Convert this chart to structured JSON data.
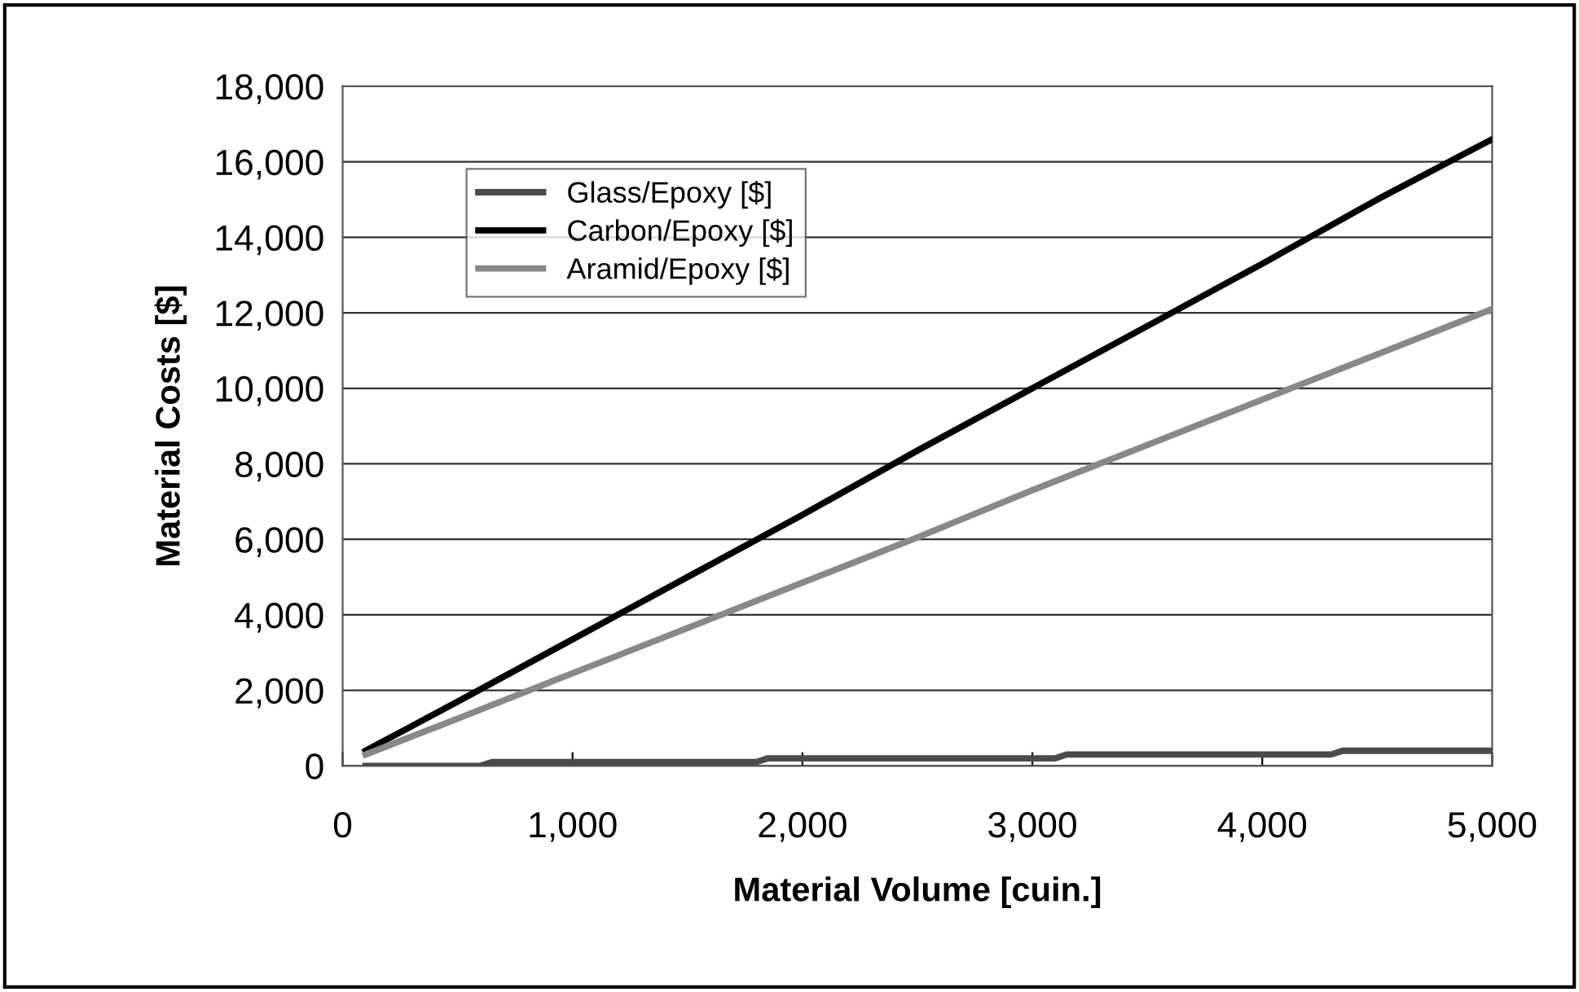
{
  "chart_data": {
    "type": "line",
    "xlabel": "Material Volume [cuin.]",
    "ylabel": "Material Costs [$]",
    "xlim": [
      0,
      5000
    ],
    "xticks": [
      0,
      {
        "value": 1000,
        "label": "1,000"
      },
      {
        "value": 2000,
        "label": "2,000"
      },
      {
        "value": 3000,
        "label": "3,000"
      },
      {
        "value": 4000,
        "label": "4,000"
      },
      {
        "value": 5000,
        "label": "5,000"
      }
    ],
    "ylim": [
      0,
      18000
    ],
    "yticks": [
      0,
      {
        "value": 2000,
        "label": "2,000"
      },
      {
        "value": 4000,
        "label": "4,000"
      },
      {
        "value": 6000,
        "label": "6,000"
      },
      {
        "value": 8000,
        "label": "8,000"
      },
      {
        "value": 10000,
        "label": "10,000"
      },
      {
        "value": 12000,
        "label": "12,000"
      },
      {
        "value": 14000,
        "label": "14,000"
      },
      {
        "value": 16000,
        "label": "16,000"
      },
      {
        "value": 18000,
        "label": "18,000"
      }
    ],
    "grid": "y",
    "legend": "top left",
    "line_style": "solid",
    "marker": "none",
    "series": [
      {
        "name": "Glass/Epoxy [$]",
        "color": "#4a4a4a",
        "x": [
          100,
          600,
          650,
          1800,
          1850,
          3100,
          3150,
          4300,
          4350,
          5000
        ],
        "values": [
          0,
          0,
          100,
          100,
          200,
          200,
          300,
          300,
          400,
          400
        ]
      },
      {
        "name": "Carbon/Epoxy [$]",
        "color": "#000000",
        "x": [
          100,
          500,
          1000,
          1500,
          2000,
          2500,
          3000,
          3500,
          4000,
          4500,
          5000
        ],
        "values": [
          400,
          1700,
          3350,
          5000,
          6650,
          8350,
          10000,
          11650,
          13300,
          15000,
          16600
        ]
      },
      {
        "name": "Aramid/Epoxy [$]",
        "color": "#888888",
        "x": [
          100,
          500,
          1000,
          1500,
          2000,
          2500,
          3000,
          3500,
          4000,
          4500,
          5000
        ],
        "values": [
          300,
          1250,
          2450,
          3650,
          4850,
          6050,
          7300,
          8500,
          9700,
          10900,
          12100
        ]
      }
    ]
  }
}
